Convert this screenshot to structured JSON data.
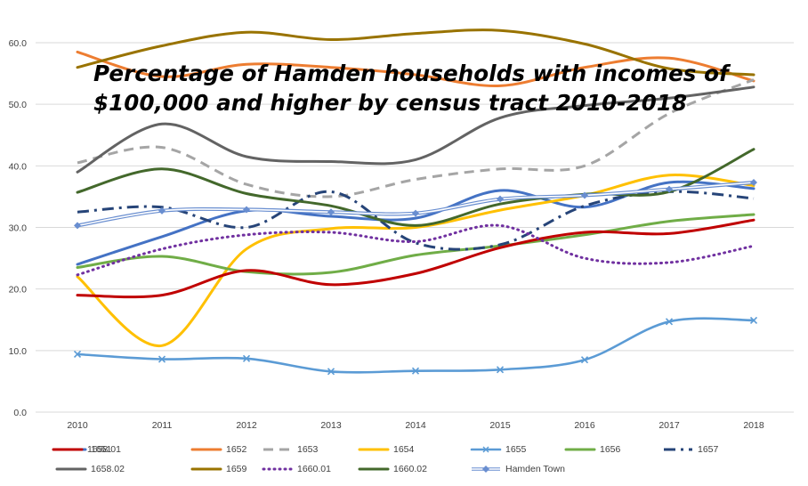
{
  "chart_data": {
    "type": "line",
    "title": "Percentage of Hamden households with incomes of $100,000 and higher by census tract 2010-2018",
    "title_lines": [
      "Percentage of Hamden households with incomes of",
      "$100,000 and higher by census tract 2010-2018"
    ],
    "xlabel": "",
    "ylabel": "",
    "x": [
      "2010",
      "2011",
      "2012",
      "2013",
      "2014",
      "2015",
      "2016",
      "2017",
      "2018"
    ],
    "ylim": [
      0,
      60
    ],
    "yticks": [
      "0.0",
      "10.0",
      "20.0",
      "30.0",
      "40.0",
      "50.0",
      "60.0"
    ],
    "grid": true,
    "legend_position": "bottom",
    "series": [
      {
        "name": "1651",
        "color": "#4472c4",
        "style": "solid",
        "values": [
          24.0,
          28.5,
          32.7,
          31.8,
          31.5,
          36.0,
          33.3,
          37.3,
          36.3
        ]
      },
      {
        "name": "1652",
        "color": "#ed7d31",
        "style": "solid",
        "values": [
          58.5,
          54.5,
          56.5,
          56.0,
          54.8,
          53.0,
          56.0,
          57.5,
          53.8
        ]
      },
      {
        "name": "1653",
        "color": "#a5a5a5",
        "style": "dash",
        "values": [
          40.5,
          43.0,
          37.0,
          35.0,
          37.8,
          39.5,
          40.0,
          48.5,
          54.0
        ]
      },
      {
        "name": "1654",
        "color": "#ffc000",
        "style": "solid",
        "values": [
          22.0,
          10.8,
          26.5,
          29.8,
          30.0,
          32.8,
          35.2,
          38.5,
          36.8
        ]
      },
      {
        "name": "1655",
        "color": "#5b9bd5",
        "style": "marker-x",
        "values": [
          9.4,
          8.6,
          8.7,
          6.6,
          6.7,
          6.9,
          8.5,
          14.7,
          14.9
        ]
      },
      {
        "name": "1656",
        "color": "#70ad47",
        "style": "solid",
        "values": [
          23.5,
          25.3,
          22.8,
          22.7,
          25.5,
          27.0,
          28.8,
          31.0,
          32.1
        ]
      },
      {
        "name": "1657",
        "color": "#264478",
        "style": "dashdot",
        "values": [
          32.5,
          33.3,
          30.0,
          35.8,
          27.5,
          27.2,
          33.5,
          35.8,
          34.7
        ]
      },
      {
        "name": "1658.01",
        "color": "#c00000",
        "style": "solid",
        "values": [
          19.0,
          19.0,
          23.0,
          20.7,
          22.5,
          26.7,
          29.2,
          29.0,
          31.2
        ]
      },
      {
        "name": "1658.02",
        "color": "#636363",
        "style": "solid",
        "values": [
          39.0,
          46.8,
          41.5,
          40.7,
          41.0,
          47.8,
          49.8,
          51.0,
          52.8
        ]
      },
      {
        "name": "1659",
        "color": "#997300",
        "style": "solid",
        "values": [
          56.0,
          59.5,
          61.7,
          60.5,
          61.5,
          62.0,
          59.8,
          55.8,
          54.8
        ]
      },
      {
        "name": "1660.01",
        "color": "#7030a0",
        "style": "dot",
        "values": [
          22.3,
          26.5,
          28.8,
          29.2,
          27.7,
          30.3,
          25.0,
          24.3,
          27.0
        ]
      },
      {
        "name": "1660.02",
        "color": "#43682b",
        "style": "solid",
        "values": [
          35.7,
          39.5,
          35.5,
          33.5,
          30.3,
          33.8,
          35.4,
          35.8,
          42.7
        ]
      },
      {
        "name": "Hamden Town",
        "color": "#698ed0",
        "style": "double-diamond",
        "values": [
          30.3,
          32.7,
          32.9,
          32.5,
          32.3,
          34.6,
          35.2,
          36.2,
          37.3
        ]
      }
    ]
  }
}
